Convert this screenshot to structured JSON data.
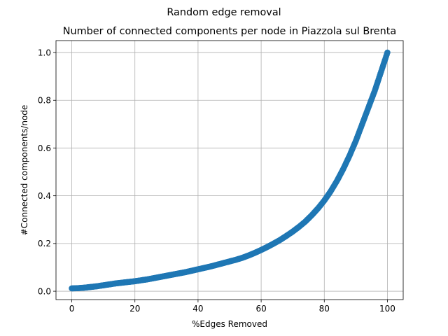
{
  "figure": {
    "suptitle": "Random edge removal"
  },
  "chart_data": {
    "type": "scatter",
    "title": "Number of connected components per node in Piazzola sul Brenta",
    "xlabel": "%Edges Removed",
    "ylabel": "#Connected components/node",
    "xlim": [
      -5,
      105
    ],
    "ylim": [
      -0.035,
      1.05
    ],
    "xticks": [
      0,
      20,
      40,
      60,
      80,
      100
    ],
    "xtick_labels": [
      "0",
      "20",
      "40",
      "60",
      "80",
      "100"
    ],
    "yticks": [
      0.0,
      0.2,
      0.4,
      0.6,
      0.8,
      1.0
    ],
    "ytick_labels": [
      "0.0",
      "0.2",
      "0.4",
      "0.6",
      "0.8",
      "1.0"
    ],
    "grid": true,
    "series": [
      {
        "color": "#1f77b4",
        "x": [
          0,
          2,
          4,
          6,
          8,
          10,
          12,
          14,
          16,
          18,
          20,
          22,
          24,
          26,
          28,
          30,
          32,
          34,
          36,
          38,
          40,
          42,
          44,
          46,
          48,
          50,
          52,
          54,
          56,
          58,
          60,
          62,
          64,
          66,
          68,
          70,
          72,
          74,
          76,
          78,
          80,
          82,
          84,
          86,
          88,
          90,
          92,
          94,
          96,
          98,
          100
        ],
        "y": [
          0.012,
          0.013,
          0.015,
          0.018,
          0.021,
          0.025,
          0.029,
          0.033,
          0.036,
          0.039,
          0.042,
          0.046,
          0.05,
          0.055,
          0.06,
          0.065,
          0.07,
          0.075,
          0.08,
          0.086,
          0.092,
          0.098,
          0.104,
          0.111,
          0.118,
          0.125,
          0.132,
          0.14,
          0.15,
          0.161,
          0.173,
          0.186,
          0.2,
          0.215,
          0.232,
          0.25,
          0.27,
          0.292,
          0.318,
          0.347,
          0.38,
          0.418,
          0.462,
          0.512,
          0.568,
          0.63,
          0.7,
          0.77,
          0.84,
          0.92,
          1.0
        ]
      }
    ]
  }
}
